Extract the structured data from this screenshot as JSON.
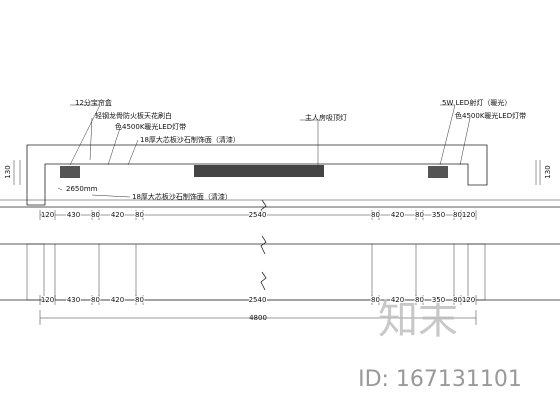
{
  "labels": [
    "12分宝帘盒",
    "轻钢龙骨防火板天花刷白",
    "色4500K暖光LED灯带",
    "18厚大芯板沙石制饰面（清漆）",
    "主人房吸顶灯",
    "5W LED射灯（暖光）",
    "色4500K暖光LED灯带",
    "18厚大芯板沙石制饰面（清漆）"
  ],
  "height_note": "2650mm",
  "dimensions": {
    "left_height": 130,
    "right_height": 130,
    "top": [
      120,
      430,
      80,
      420,
      80,
      2540,
      80,
      420,
      80,
      350,
      80,
      120
    ],
    "bottom": [
      120,
      430,
      80,
      420,
      80,
      2540,
      80,
      420,
      80,
      350,
      80,
      120
    ],
    "total": 4800
  },
  "watermark": {
    "logo": "知末",
    "id": "ID: 167131101"
  }
}
